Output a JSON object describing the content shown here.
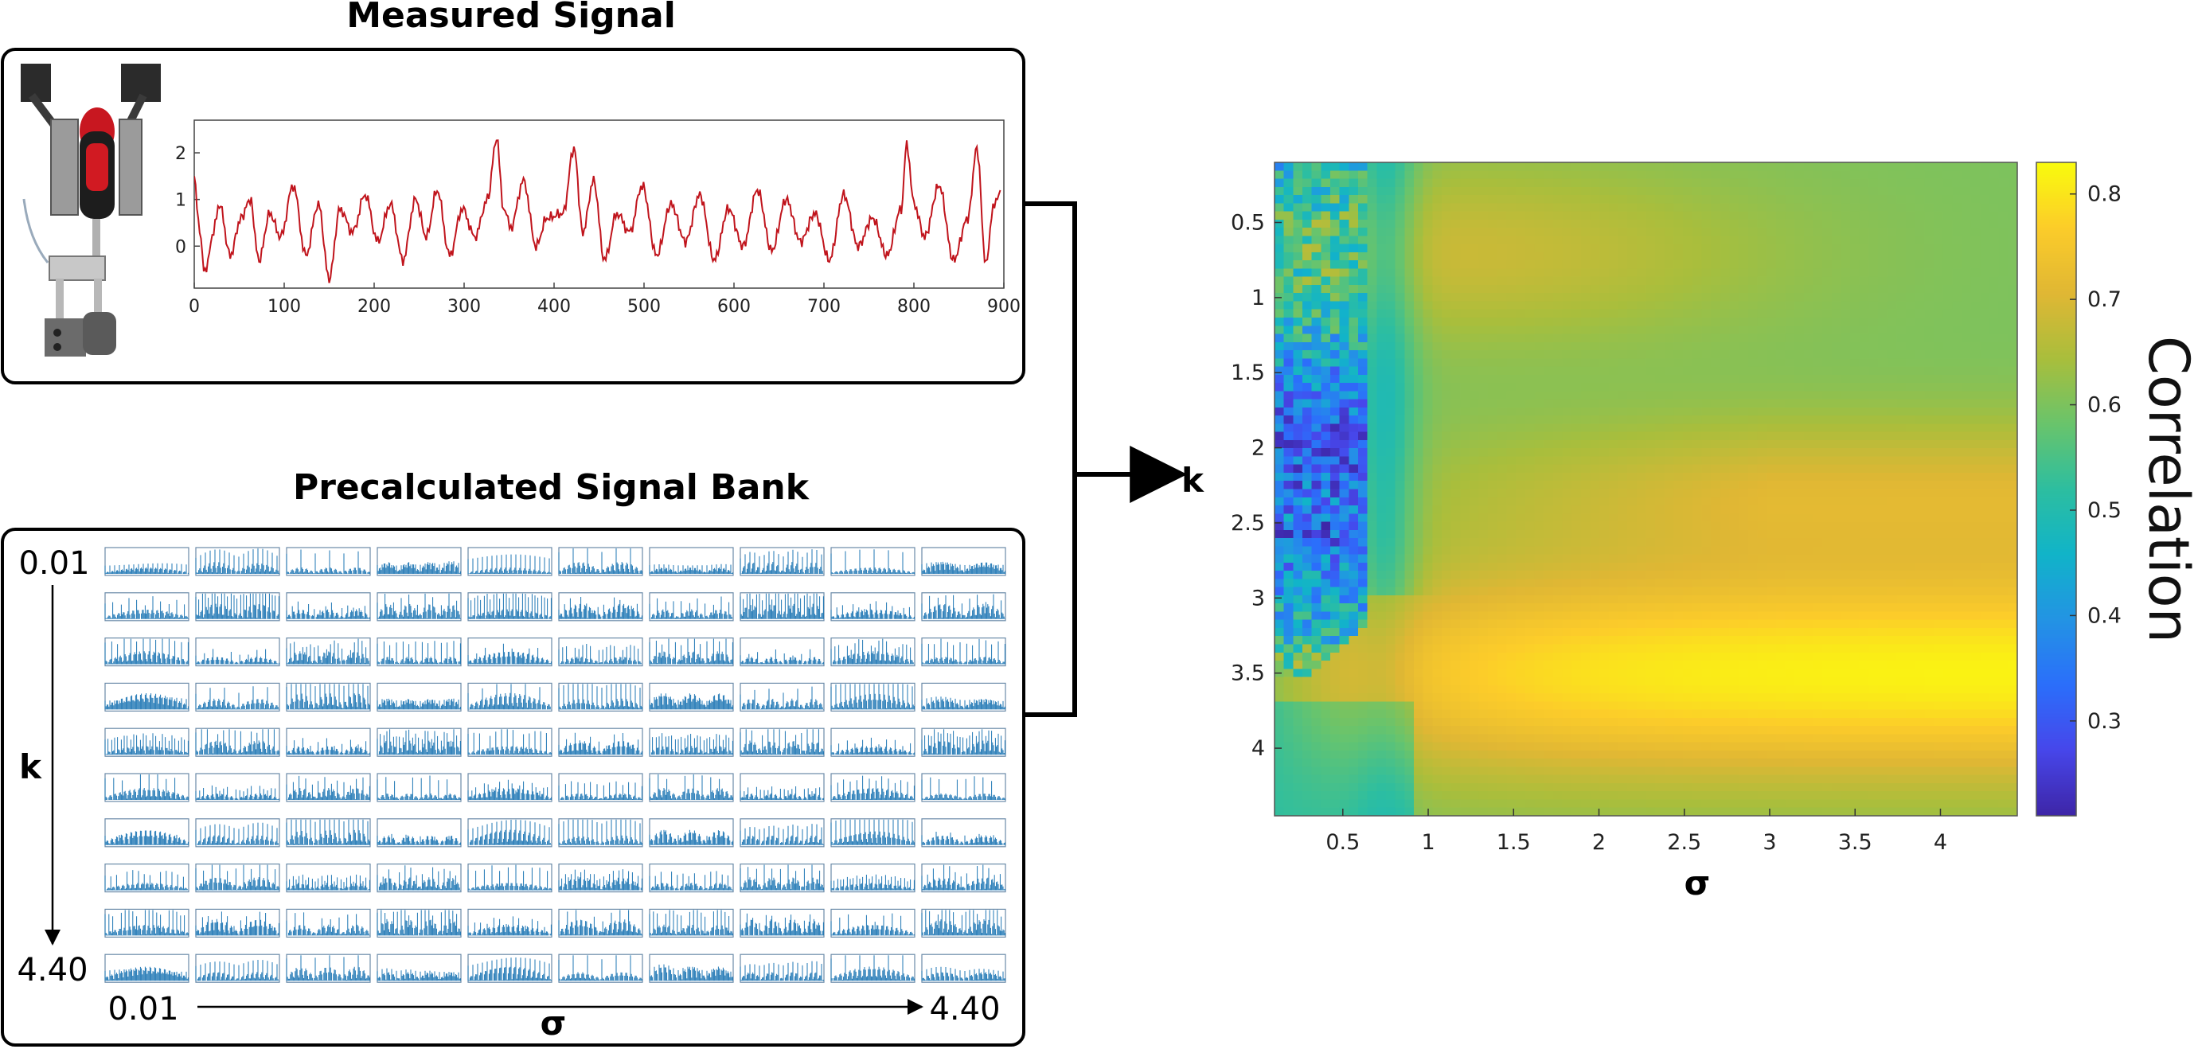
{
  "measured": {
    "title": "Measured Signal",
    "x_ticks": [
      "0",
      "100",
      "200",
      "300",
      "400",
      "500",
      "600",
      "700",
      "800",
      "900"
    ],
    "y_ticks": [
      "2",
      "1",
      "0"
    ],
    "line_color": "#c0141c",
    "image_icon": "robotic-gripper-with-screwdriver-photo"
  },
  "bank": {
    "title": "Precalculated Signal Bank",
    "k_start": "0.01",
    "k_end": "4.40",
    "k_label": "k",
    "sigma_start": "0.01",
    "sigma_end": "4.40",
    "sigma_label": "σ",
    "rows": 10,
    "cols": 10,
    "color": "#1f77b4"
  },
  "heatmap": {
    "x_label": "σ",
    "y_label": "k",
    "colorbar_label": "Correlation",
    "colormap": "parula",
    "colorbar_ticks": [
      "0.8",
      "0.7",
      "0.6",
      "0.5",
      "0.4",
      "0.3"
    ]
  },
  "chart_data": [
    {
      "type": "line",
      "x_range": [
        0,
        900
      ],
      "y_range": [
        -0.9,
        2.7
      ],
      "series": [
        {
          "x": [
            0,
            6,
            12,
            20,
            28,
            40,
            52,
            62,
            72,
            84,
            96,
            110,
            124,
            138,
            150,
            162,
            176,
            190,
            204,
            218,
            232,
            246,
            258,
            270,
            284,
            298,
            312,
            326,
            336,
            344,
            352,
            366,
            380,
            392,
            410,
            422,
            432,
            444,
            456,
            470,
            484,
            498,
            514,
            530,
            546,
            562,
            578,
            594,
            610,
            626,
            642,
            658,
            674,
            690,
            706,
            722,
            738,
            754,
            770,
            786,
            792,
            800,
            812,
            828,
            844,
            860,
            870,
            880,
            888,
            896
          ],
          "values": [
            1.5,
            0.3,
            -0.6,
            0.2,
            0.9,
            -0.2,
            0.6,
            1.0,
            -0.3,
            0.7,
            0.2,
            1.3,
            -0.2,
            0.9,
            -0.7,
            0.8,
            0.3,
            1.1,
            0.1,
            0.9,
            -0.3,
            1.0,
            0.2,
            1.2,
            -0.2,
            0.8,
            0.2,
            1.0,
            2.3,
            0.8,
            0.4,
            1.4,
            0.0,
            0.6,
            0.7,
            2.1,
            0.3,
            1.4,
            -0.3,
            0.7,
            0.3,
            1.3,
            -0.2,
            0.9,
            0.1,
            1.1,
            -0.3,
            0.8,
            0.0,
            1.2,
            -0.1,
            1.0,
            0.1,
            0.7,
            -0.3,
            1.1,
            0.0,
            0.6,
            -0.2,
            0.8,
            2.2,
            0.9,
            0.2,
            1.3,
            -0.3,
            0.6,
            2.1,
            -0.4,
            0.8,
            1.2
          ]
        }
      ]
    },
    {
      "type": "heatmap",
      "x_range": [
        0.1,
        4.45
      ],
      "y_range": [
        0.1,
        4.45
      ],
      "x_ticks": [
        0.5,
        1,
        1.5,
        2,
        2.5,
        3,
        3.5,
        4
      ],
      "y_ticks": [
        0.5,
        1,
        1.5,
        2,
        2.5,
        3,
        3.5,
        4
      ],
      "y_reversed": true,
      "color_range": [
        0.21,
        0.83
      ],
      "colorbar_ticks": [
        0.3,
        0.4,
        0.5,
        0.6,
        0.7,
        0.8
      ],
      "grid_size": [
        80,
        80
      ]
    }
  ]
}
